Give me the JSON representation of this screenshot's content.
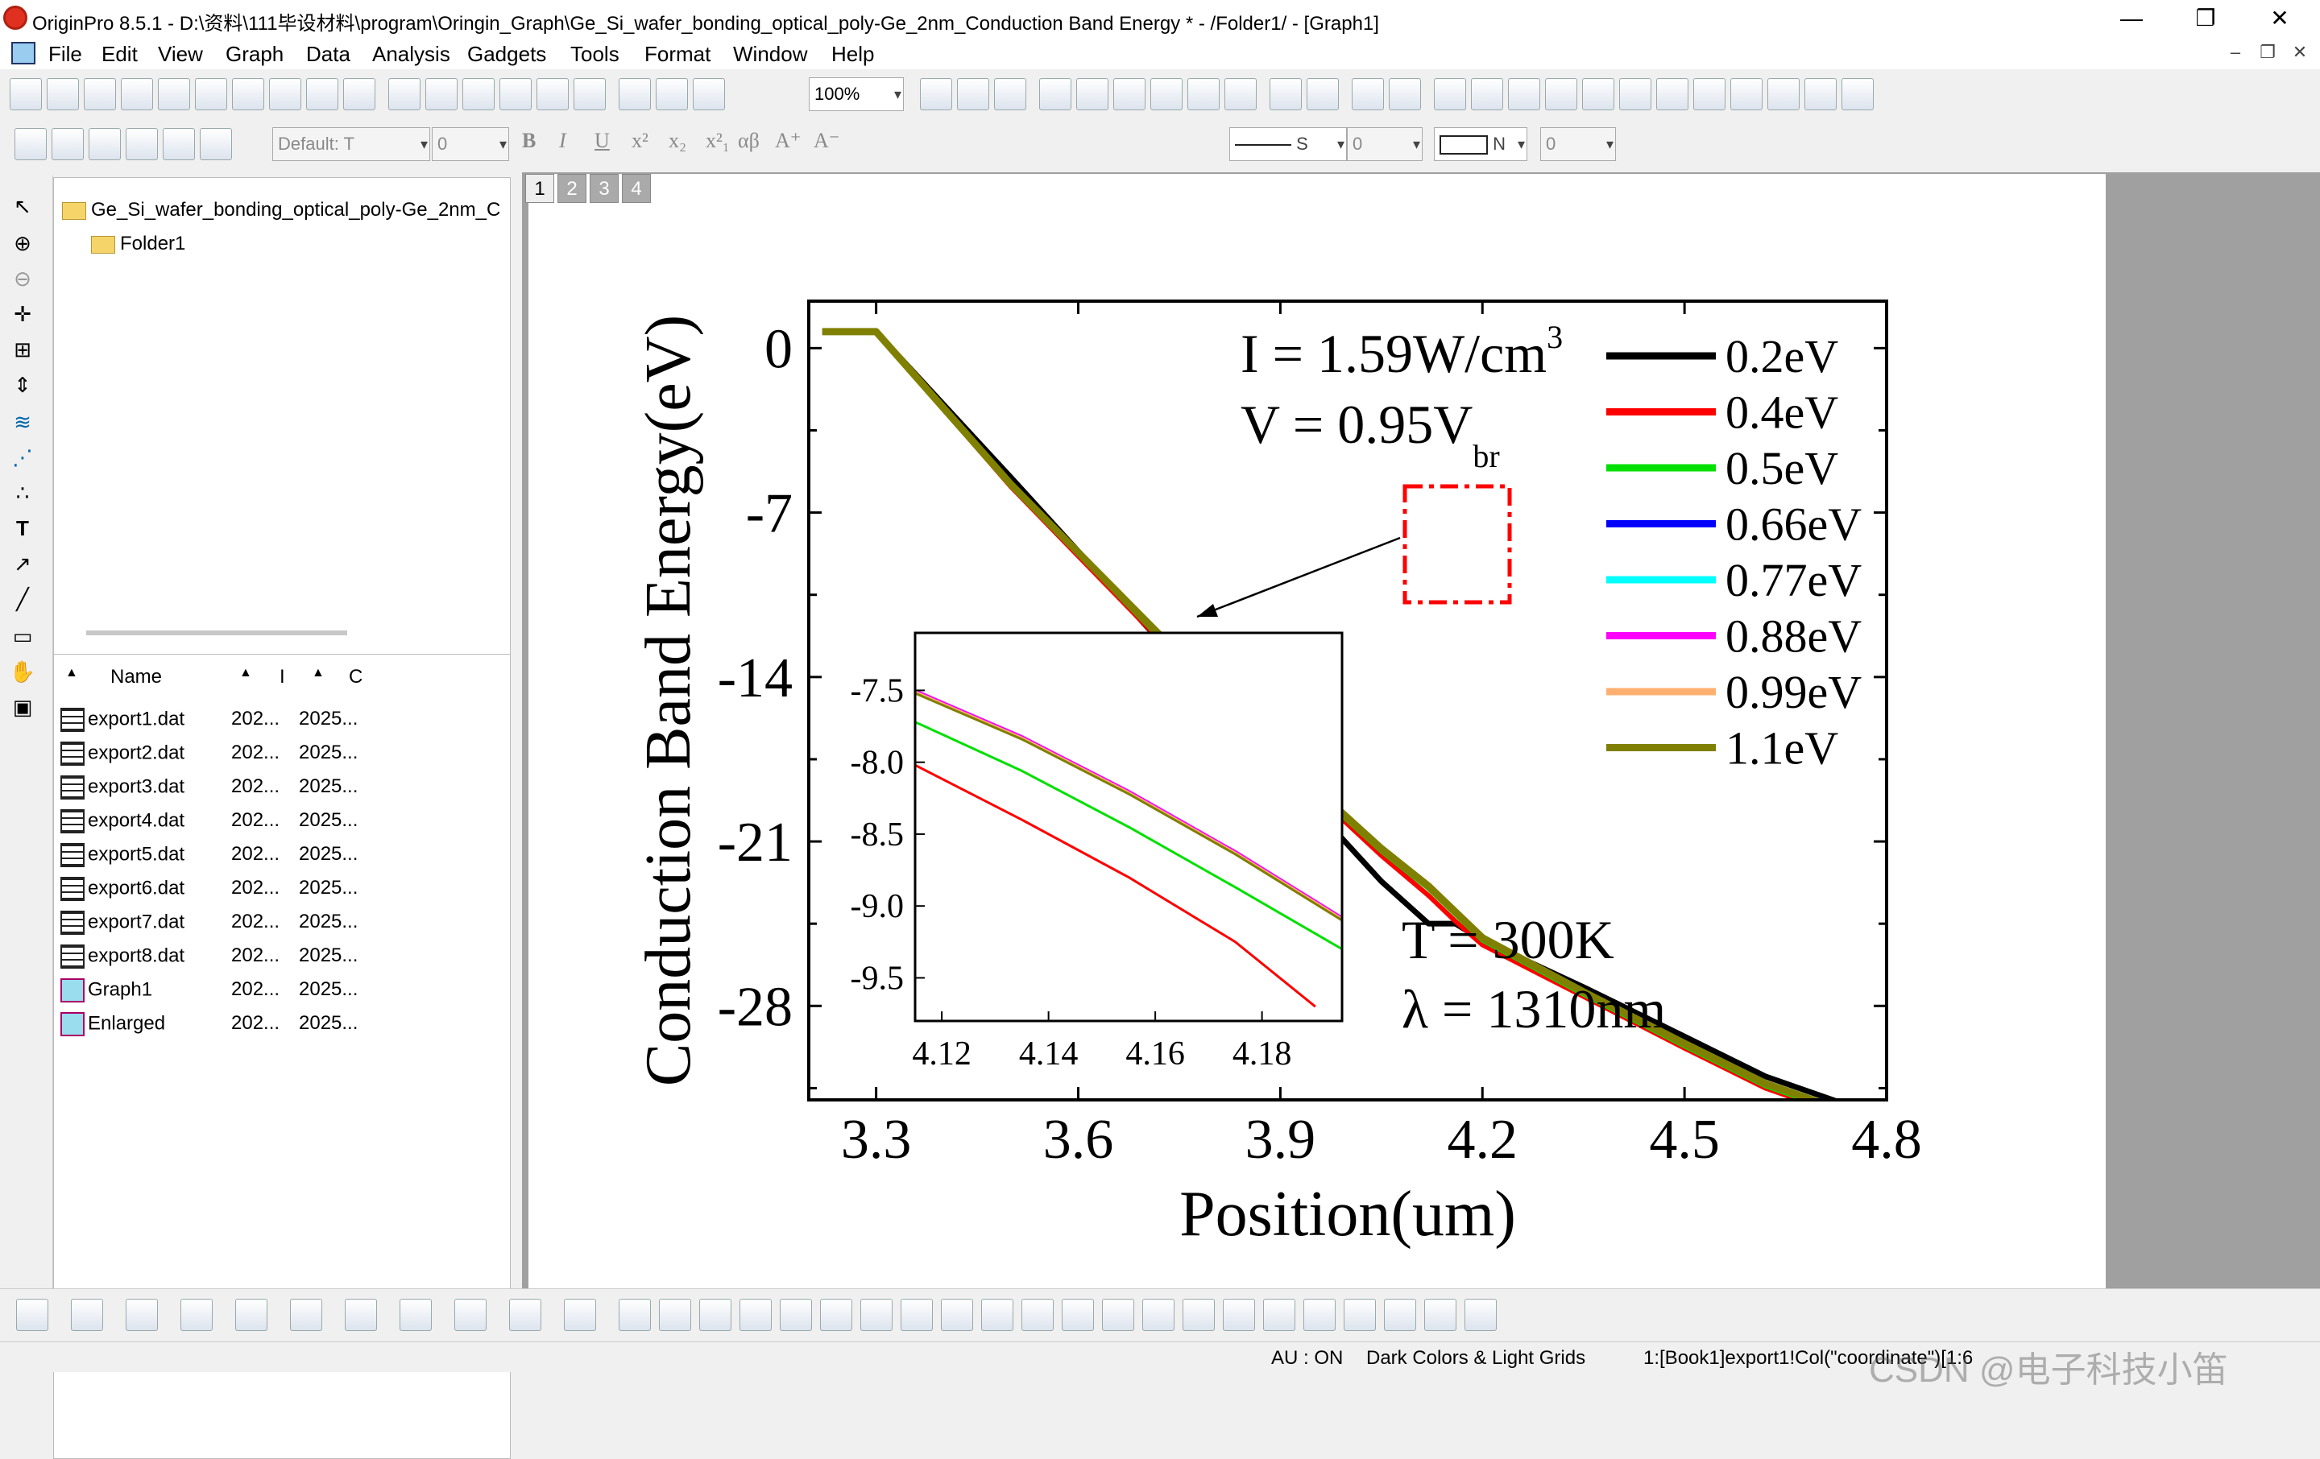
{
  "window": {
    "title": "OriginPro 8.5.1 - D:\\资料\\111毕设材料\\program\\Oringin_Graph\\Ge_Si_wafer_bonding_optical_poly-Ge_2nm_Conduction Band Energy * - /Folder1/ - [Graph1]",
    "minimize": "—",
    "restore": "❐",
    "close": "✕"
  },
  "menu": [
    "File",
    "Edit",
    "View",
    "Graph",
    "Data",
    "Analysis",
    "Gadgets",
    "Tools",
    "Format",
    "Window",
    "Help"
  ],
  "toolbar": {
    "zoom": "100%",
    "font": "Default: T",
    "font_size": "0",
    "line_style": "S",
    "line_width": "0",
    "fill": "N",
    "pattern_width": "0"
  },
  "explorer": {
    "project": "Ge_Si_wafer_bonding_optical_poly-Ge_2nm_C",
    "folder": "Folder1",
    "columns": [
      "Name",
      "I",
      "C"
    ],
    "items": [
      {
        "name": "export1.dat",
        "c2": "202...",
        "c3": "2025...",
        "icon": "worksheet"
      },
      {
        "name": "export2.dat",
        "c2": "202...",
        "c3": "2025...",
        "icon": "worksheet"
      },
      {
        "name": "export3.dat",
        "c2": "202...",
        "c3": "2025...",
        "icon": "worksheet"
      },
      {
        "name": "export4.dat",
        "c2": "202...",
        "c3": "2025...",
        "icon": "worksheet"
      },
      {
        "name": "export5.dat",
        "c2": "202...",
        "c3": "2025...",
        "icon": "worksheet"
      },
      {
        "name": "export6.dat",
        "c2": "202...",
        "c3": "2025...",
        "icon": "worksheet"
      },
      {
        "name": "export7.dat",
        "c2": "202...",
        "c3": "2025...",
        "icon": "worksheet"
      },
      {
        "name": "export8.dat",
        "c2": "202...",
        "c3": "2025...",
        "icon": "worksheet"
      },
      {
        "name": "Graph1",
        "c2": "202...",
        "c3": "2025...",
        "icon": "graph"
      },
      {
        "name": "Enlarged",
        "c2": "202...",
        "c3": "2025...",
        "icon": "graph"
      }
    ]
  },
  "page_tabs": [
    "1",
    "2",
    "3",
    "4"
  ],
  "status": {
    "au": "AU : ON",
    "theme": "Dark Colors & Light Grids",
    "cell": "1:[Book1]export1!Col(\"coordinate\")[1:6"
  },
  "watermark": "CSDN @电子科技小笛",
  "chart_data": {
    "type": "line",
    "xlabel": "Position(um)",
    "ylabel": "Conduction Band Energy(eV)",
    "xlim": [
      3.2,
      4.8
    ],
    "ylim": [
      -32,
      2
    ],
    "xticks": [
      "3.3",
      "3.6",
      "3.9",
      "4.2",
      "4.5",
      "4.8"
    ],
    "yticks": [
      "0",
      "-7",
      "-14",
      "-21",
      "-28"
    ],
    "xtick_values": [
      3.3,
      3.6,
      3.9,
      4.2,
      4.5,
      4.8
    ],
    "ytick_values": [
      0,
      -7,
      -14,
      -21,
      -28
    ],
    "annotations": {
      "intensity_pre": "I = 1.59W/cm",
      "intensity_sup": "3",
      "voltage_pre": "V = 0.95V",
      "voltage_sub": "br",
      "temperature": "T = 300K",
      "wavelength": "λ = 1310nm"
    },
    "series": [
      {
        "name": "0.2eV",
        "color": "#000000",
        "x": [
          3.22,
          3.3,
          3.5,
          3.7,
          3.9,
          4.05,
          4.12,
          4.16,
          4.2,
          4.35,
          4.5,
          4.62,
          4.73,
          4.8
        ],
        "y": [
          0.7,
          0.7,
          -5.5,
          -11.8,
          -18.0,
          -22.7,
          -24.5,
          -24.5,
          -25.2,
          -27.2,
          -29.3,
          -31.0,
          -32.1,
          -32.1
        ]
      },
      {
        "name": "0.4eV",
        "color": "#ff0000",
        "x": [
          3.22,
          3.3,
          3.5,
          3.7,
          3.9,
          4.05,
          4.12,
          4.16,
          4.2,
          4.35,
          4.5,
          4.62,
          4.73,
          4.8
        ],
        "y": [
          0.7,
          0.7,
          -5.9,
          -11.8,
          -17.6,
          -21.6,
          -23.3,
          -24.4,
          -25.4,
          -27.6,
          -29.8,
          -31.5,
          -32.6,
          -32.6
        ]
      },
      {
        "name": "0.5eV",
        "color": "#00e000",
        "x": [
          3.22,
          3.3,
          3.5,
          3.7,
          3.9,
          4.05,
          4.12,
          4.16,
          4.2,
          4.35,
          4.5,
          4.62,
          4.73,
          4.8
        ],
        "y": [
          0.7,
          0.7,
          -5.8,
          -11.7,
          -17.5,
          -21.4,
          -23.0,
          -24.1,
          -25.2,
          -27.5,
          -29.7,
          -31.4,
          -32.5,
          -32.5
        ]
      },
      {
        "name": "0.66eV",
        "color": "#0000ff",
        "x": [
          3.22,
          3.3,
          3.5,
          3.7,
          3.9,
          4.05,
          4.12,
          4.16,
          4.2,
          4.35,
          4.5,
          4.62,
          4.73,
          4.8
        ],
        "y": [
          0.7,
          0.7,
          -5.8,
          -11.6,
          -17.4,
          -21.3,
          -22.9,
          -24.0,
          -25.1,
          -27.4,
          -29.6,
          -31.3,
          -32.4,
          -32.4
        ]
      },
      {
        "name": "0.77eV",
        "color": "#00ffff",
        "x": [
          3.22,
          3.3,
          3.5,
          3.7,
          3.9,
          4.05,
          4.12,
          4.16,
          4.2,
          4.35,
          4.5,
          4.62,
          4.73,
          4.8
        ],
        "y": [
          0.7,
          0.7,
          -5.8,
          -11.6,
          -17.4,
          -21.3,
          -22.9,
          -24.0,
          -25.1,
          -27.4,
          -29.6,
          -31.3,
          -32.4,
          -32.4
        ]
      },
      {
        "name": "0.88eV",
        "color": "#ff00ff",
        "x": [
          3.22,
          3.3,
          3.5,
          3.7,
          3.9,
          4.05,
          4.12,
          4.16,
          4.2,
          4.35,
          4.5,
          4.62,
          4.73,
          4.8
        ],
        "y": [
          0.7,
          0.7,
          -5.8,
          -11.6,
          -17.4,
          -21.3,
          -22.9,
          -24.0,
          -25.1,
          -27.4,
          -29.6,
          -31.3,
          -32.4,
          -32.4
        ]
      },
      {
        "name": "0.99eV",
        "color": "#ffb070",
        "x": [
          3.22,
          3.3,
          3.5,
          3.7,
          3.9,
          4.05,
          4.12,
          4.16,
          4.2,
          4.35,
          4.5,
          4.62,
          4.73,
          4.8
        ],
        "y": [
          0.7,
          0.7,
          -5.8,
          -11.6,
          -17.4,
          -21.3,
          -22.9,
          -24.0,
          -25.1,
          -27.4,
          -29.6,
          -31.3,
          -32.4,
          -32.4
        ]
      },
      {
        "name": "1.1eV",
        "color": "#808000",
        "x": [
          3.22,
          3.3,
          3.5,
          3.7,
          3.9,
          4.05,
          4.12,
          4.16,
          4.2,
          4.35,
          4.5,
          4.62,
          4.73,
          4.8
        ],
        "y": [
          0.7,
          0.7,
          -5.8,
          -11.6,
          -17.4,
          -21.3,
          -22.9,
          -24.0,
          -25.1,
          -27.4,
          -29.6,
          -31.3,
          -32.4,
          -32.4
        ]
      }
    ],
    "inset": {
      "xlim": [
        4.115,
        4.195
      ],
      "ylim": [
        -9.8,
        -7.1
      ],
      "xticks": [
        "4.12",
        "4.14",
        "4.16",
        "4.18"
      ],
      "yticks": [
        "-7.5",
        "-8.0",
        "-8.5",
        "-9.0",
        "-9.5"
      ],
      "xtick_values": [
        4.12,
        4.14,
        4.16,
        4.18
      ],
      "ytick_values": [
        -7.5,
        -8.0,
        -8.5,
        -9.0,
        -9.5
      ],
      "series": [
        {
          "name": "0.4eV",
          "color": "#ff0000",
          "x": [
            4.115,
            4.135,
            4.155,
            4.175,
            4.19
          ],
          "y": [
            -8.02,
            -8.4,
            -8.8,
            -9.25,
            -9.7
          ]
        },
        {
          "name": "0.5eV",
          "color": "#00e000",
          "x": [
            4.115,
            4.135,
            4.155,
            4.175,
            4.195
          ],
          "y": [
            -7.72,
            -8.06,
            -8.45,
            -8.87,
            -9.3
          ]
        },
        {
          "name": "0.66eV",
          "color": "#0000ff",
          "x": [
            4.115,
            4.135,
            4.155,
            4.175,
            4.195
          ],
          "y": [
            -7.5,
            -7.82,
            -8.2,
            -8.62,
            -9.08
          ]
        },
        {
          "name": "0.88eV",
          "color": "#ff00ff",
          "x": [
            4.115,
            4.135,
            4.155,
            4.175,
            4.195
          ],
          "y": [
            -7.5,
            -7.82,
            -8.2,
            -8.62,
            -9.08
          ]
        },
        {
          "name": "0.99eV",
          "color": "#ffb070",
          "x": [
            4.115,
            4.135,
            4.155,
            4.175,
            4.195
          ],
          "y": [
            -7.51,
            -7.83,
            -8.21,
            -8.63,
            -9.09
          ]
        },
        {
          "name": "1.1eV",
          "color": "#808000",
          "x": [
            4.115,
            4.135,
            4.155,
            4.175,
            4.195
          ],
          "y": [
            -7.52,
            -7.84,
            -8.22,
            -8.64,
            -9.1
          ]
        }
      ]
    }
  }
}
